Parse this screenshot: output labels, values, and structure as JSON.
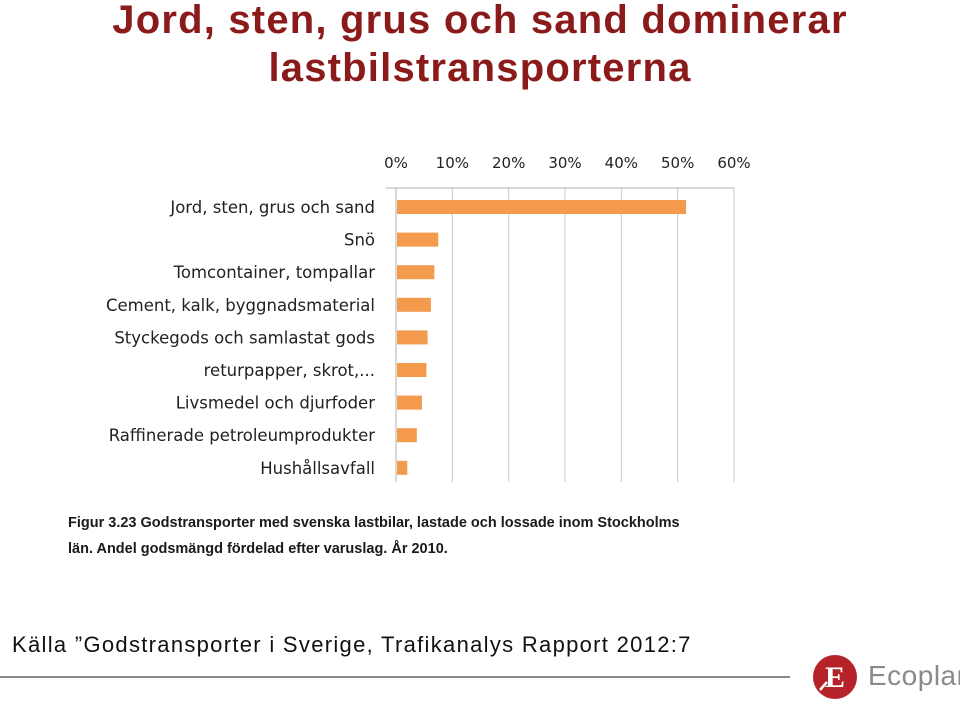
{
  "slide": {
    "title_line1": "Jord, sten, grus och sand dominerar",
    "title_line2": "lastbilstransporterna",
    "caption_line1": "Figur 3.23 Godstransporter med svenska lastbilar, lastade och lossade inom Stockholms",
    "caption_line2": "län. Andel godsmängd fördelad efter varuslag. År 2010.",
    "source": "Källa ”Godstransporter i Sverige, Trafikanalys Rapport 2012:7",
    "logo_letter": "E",
    "logo_text": "Ecoplan"
  },
  "colors": {
    "title": "#8b1a1a",
    "bar": "#f39a4c",
    "grid": "#c8c8c8",
    "logo": "#b5222a"
  },
  "chart_data": {
    "type": "bar",
    "orientation": "horizontal",
    "categories": [
      "Jord, sten, grus och sand",
      "Snö",
      "Tomcontainer, tompallar",
      "Cement, kalk, byggnadsmaterial",
      "Styckegods och samlastat gods",
      "returpapper, skrot,...",
      "Livsmedel och djurfoder",
      "Raffinerade petroleumprodukter",
      "Hushållsavfall"
    ],
    "values": [
      51.5,
      7.5,
      6.8,
      6.2,
      5.6,
      5.4,
      4.6,
      3.7,
      2.0
    ],
    "unit": "%",
    "xlim": [
      0,
      60
    ],
    "xticks": [
      "0%",
      "10%",
      "20%",
      "30%",
      "40%",
      "50%",
      "60%"
    ],
    "xaxis_position": "top",
    "grid": true,
    "legend": "none"
  }
}
